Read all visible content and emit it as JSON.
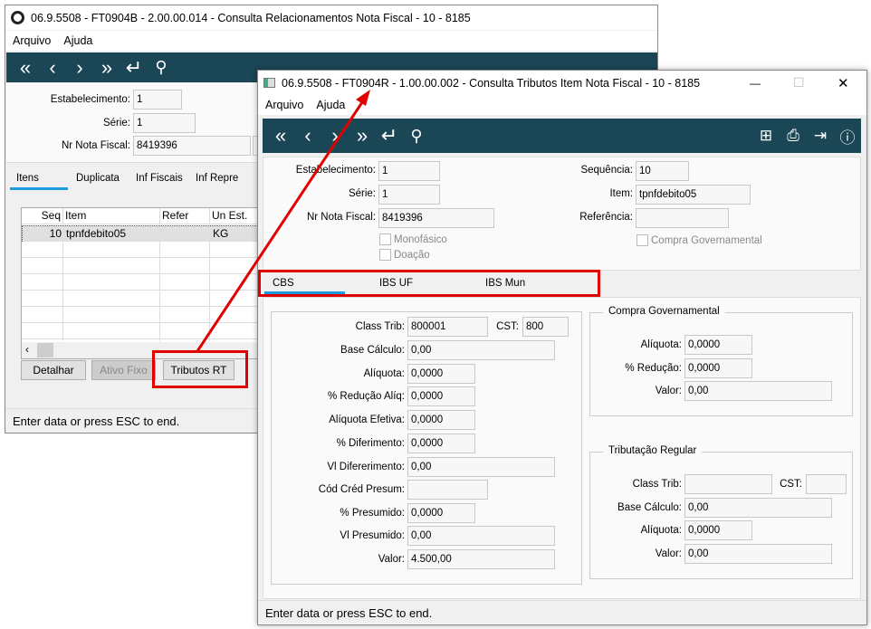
{
  "back_window": {
    "title": "06.9.5508 - FT0904B - 2.00.00.014 - Consulta Relacionamentos Nota Fiscal - 10 - 8185",
    "menu": [
      "Arquivo",
      "Ajuda"
    ],
    "toolbar_icons": [
      "first-icon",
      "prev-icon",
      "next-icon",
      "last-icon",
      "enter-icon",
      "search-icon"
    ],
    "fields": {
      "estabelecimento_label": "Estabelecimento:",
      "estabelecimento": "1",
      "serie_label": "Série:",
      "serie": "1",
      "nr_nota_label": "Nr Nota Fiscal:",
      "nr_nota": "8419396"
    },
    "tabs": [
      "Itens",
      "Duplicata",
      "Inf Fiscais",
      "Inf Repre"
    ],
    "grid": {
      "columns": [
        "Seq",
        "Item",
        "Refer",
        "Un Est."
      ],
      "rows": [
        [
          "10",
          "tpnfdebito05",
          "",
          "KG"
        ]
      ]
    },
    "buttons": {
      "detalhar": "Detalhar",
      "ativo_fixo": "Ativo Fixo",
      "tributos_rt": "Tributos RT"
    },
    "status": "Enter data or press ESC to end."
  },
  "front_window": {
    "title": "06.9.5508 - FT0904R - 1.00.00.002 - Consulta Tributos Item Nota Fiscal - 10 - 8185",
    "menu": [
      "Arquivo",
      "Ajuda"
    ],
    "window_controls": {
      "minimize": "—",
      "maximize": "☐",
      "close": "✕"
    },
    "toolbar_icons": [
      "first-icon",
      "prev-icon",
      "next-icon",
      "last-icon",
      "enter-icon",
      "search-icon",
      "tree-icon",
      "print-icon",
      "exit-icon",
      "help-icon"
    ],
    "header": {
      "estabelecimento_label": "Estabelecimento:",
      "estabelecimento": "1",
      "serie_label": "Série:",
      "serie": "1",
      "nr_nota_label": "Nr Nota Fiscal:",
      "nr_nota": "8419396",
      "sequencia_label": "Sequência:",
      "sequencia": "10",
      "item_label": "Item:",
      "item": "tpnfdebito05",
      "referencia_label": "Referência:",
      "referencia": "",
      "monofasico": "Monofásico",
      "doacao": "Doação",
      "compra_governamental": "Compra Governamental"
    },
    "tabs": [
      "CBS",
      "IBS UF",
      "IBS Mun"
    ],
    "active_tab": "CBS",
    "cbs": {
      "class_trib_label": "Class Trib:",
      "class_trib": "800001",
      "cst_label": "CST:",
      "cst": "800",
      "base_calculo_label": "Base Cálculo:",
      "base_calculo": "0,00",
      "aliquota_label": "Alíquota:",
      "aliquota": "0,0000",
      "reducao_aliq_label": "% Redução Alíq:",
      "reducao_aliq": "0,0000",
      "aliquota_efetiva_label": "Alíquota Efetiva:",
      "aliquota_efetiva": "0,0000",
      "diferimento_label": "% Diferimento:",
      "diferimento": "0,0000",
      "vl_diferimento_label": "Vl Difererimento:",
      "vl_diferimento": "0,00",
      "cod_cred_presum_label": "Cód Créd Presum:",
      "cod_cred_presum": "",
      "presumido_label": "% Presumido:",
      "presumido": "0,0000",
      "vl_presumido_label": "Vl Presumido:",
      "vl_presumido": "0,00",
      "valor_label": "Valor:",
      "valor": "4.500,00"
    },
    "compra_governamental": {
      "caption": "Compra Governamental",
      "aliquota_label": "Alíquota:",
      "aliquota": "0,0000",
      "reducao_label": "% Redução:",
      "reducao": "0,0000",
      "valor_label": "Valor:",
      "valor": "0,00"
    },
    "tributacao_regular": {
      "caption": "Tributação Regular",
      "class_trib_label": "Class Trib:",
      "class_trib": "",
      "cst_label": "CST:",
      "cst": "",
      "base_calculo_label": "Base Cálculo:",
      "base_calculo": "0,00",
      "aliquota_label": "Alíquota:",
      "aliquota": "0,0000",
      "valor_label": "Valor:",
      "valor": "0,00"
    },
    "status": "Enter data or press ESC to end."
  },
  "annotation_color": "#e00000"
}
